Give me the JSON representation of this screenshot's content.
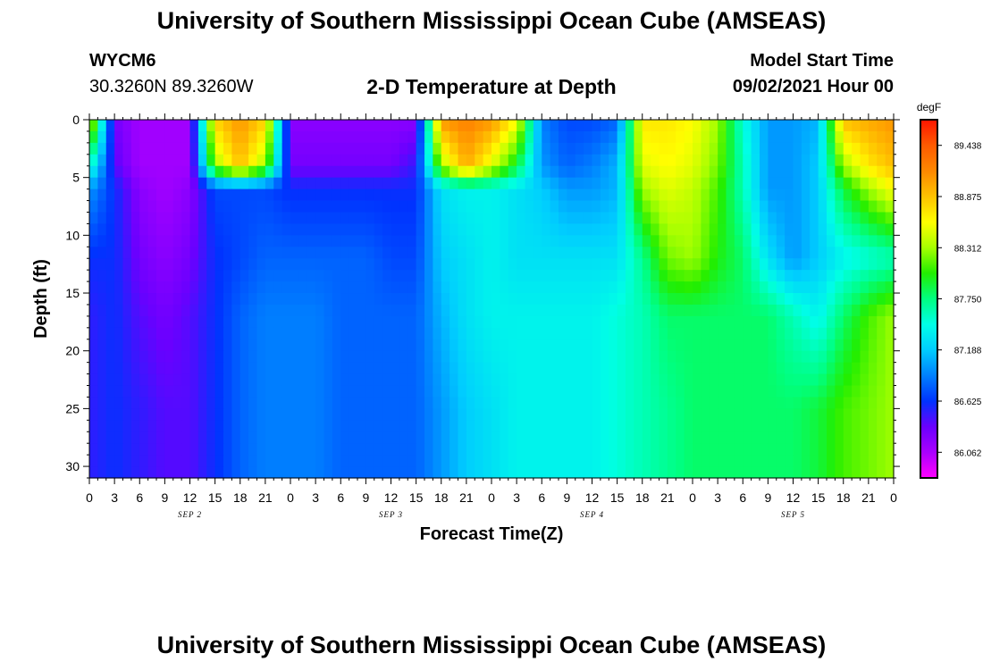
{
  "header": {
    "title": "University of Southern Mississippi Ocean Cube (AMSEAS)",
    "station": "WYCM6",
    "coordinates": "30.3260N  89.3260W",
    "plot_title": "2-D Temperature at Depth",
    "model_start_label": "Model Start Time",
    "model_start_value": "09/02/2021 Hour 00"
  },
  "footer": {
    "title": "University of Southern Mississippi Ocean Cube (AMSEAS)"
  },
  "chart_data": {
    "type": "heatmap",
    "title": "2-D Temperature at Depth",
    "xlabel": "Forecast Time(Z)",
    "ylabel": "Depth (ft)",
    "colorbar_label": "degF",
    "x_ticks": [
      "0",
      "3",
      "6",
      "9",
      "12",
      "15",
      "18",
      "21",
      "0",
      "3",
      "6",
      "9",
      "12",
      "15",
      "18",
      "21",
      "0",
      "3",
      "6",
      "9",
      "12",
      "15",
      "18",
      "21",
      "0",
      "3",
      "6",
      "9",
      "12",
      "15",
      "18",
      "21",
      "0"
    ],
    "date_labels": [
      "SEP 2",
      "SEP 3",
      "SEP 4",
      "SEP 5"
    ],
    "x_range_hours": [
      0,
      96
    ],
    "y_ticks": [
      0,
      5,
      10,
      15,
      20,
      25,
      30
    ],
    "y_range_ft": [
      0,
      31
    ],
    "colorbar_ticks": [
      "89.438",
      "88.875",
      "88.312",
      "87.750",
      "87.188",
      "86.625",
      "86.062"
    ],
    "colorbar_range": [
      85.78,
      89.72
    ],
    "colors": [
      "#ff00ff",
      "#aa00ff",
      "#6a00ff",
      "#0033ff",
      "#0080ff",
      "#00ccff",
      "#00ffe6",
      "#00ff80",
      "#22ee00",
      "#a6ff00",
      "#ffff00",
      "#ffc200",
      "#ff8800",
      "#ff5a00",
      "#ff1500"
    ],
    "x_hours": [
      0,
      3,
      6,
      9,
      12,
      15,
      18,
      21,
      24,
      27,
      30,
      33,
      36,
      39,
      42,
      45,
      48,
      51,
      54,
      57,
      60,
      63,
      66,
      69,
      72,
      75,
      78,
      81,
      84,
      87,
      90,
      93,
      96
    ],
    "depths_ft": [
      0,
      4,
      6,
      12,
      17,
      25,
      31
    ],
    "temperature_degF": [
      [
        88.6,
        86.3,
        86.1,
        86.1,
        86.1,
        88.8,
        89.1,
        88.8,
        86.2,
        86.2,
        86.2,
        86.2,
        86.2,
        86.2,
        89.1,
        89.2,
        89.1,
        88.6,
        86.9,
        86.7,
        86.7,
        86.8,
        88.7,
        88.7,
        88.6,
        88.3,
        87.5,
        87.0,
        87.0,
        87.1,
        88.9,
        89.0,
        89.1
      ],
      [
        87.6,
        86.4,
        86.1,
        86.1,
        86.1,
        88.3,
        88.9,
        88.3,
        86.3,
        86.3,
        86.3,
        86.3,
        86.3,
        86.5,
        88.3,
        89.0,
        88.5,
        87.9,
        87.0,
        86.8,
        86.9,
        87.1,
        88.5,
        88.6,
        88.5,
        88.2,
        87.6,
        87.0,
        87.0,
        87.2,
        88.3,
        88.7,
        88.9
      ],
      [
        87.0,
        86.6,
        86.2,
        86.1,
        86.2,
        86.7,
        86.7,
        86.7,
        86.6,
        86.6,
        86.6,
        86.6,
        86.6,
        86.6,
        87.3,
        87.4,
        87.4,
        87.3,
        87.2,
        87.0,
        87.0,
        87.1,
        88.3,
        88.5,
        88.4,
        88.1,
        87.6,
        87.0,
        87.0,
        87.2,
        87.9,
        88.3,
        88.6
      ],
      [
        86.6,
        86.6,
        86.3,
        86.2,
        86.3,
        86.6,
        86.7,
        86.8,
        86.8,
        86.8,
        86.8,
        86.8,
        86.7,
        86.7,
        87.2,
        87.3,
        87.4,
        87.3,
        87.3,
        87.3,
        87.3,
        87.3,
        87.7,
        88.2,
        88.3,
        88.0,
        87.8,
        87.3,
        87.0,
        87.2,
        87.4,
        87.5,
        87.6
      ],
      [
        86.5,
        86.6,
        86.4,
        86.3,
        86.4,
        86.6,
        86.8,
        86.9,
        86.9,
        86.9,
        86.8,
        86.8,
        86.8,
        86.8,
        87.1,
        87.3,
        87.4,
        87.4,
        87.4,
        87.4,
        87.4,
        87.5,
        87.6,
        87.8,
        87.8,
        87.8,
        87.8,
        87.8,
        87.6,
        87.4,
        87.8,
        88.1,
        88.3
      ],
      [
        86.5,
        86.6,
        86.5,
        86.4,
        86.4,
        86.6,
        86.8,
        86.9,
        86.9,
        86.9,
        86.8,
        86.8,
        86.8,
        86.8,
        87.0,
        87.2,
        87.3,
        87.4,
        87.4,
        87.4,
        87.4,
        87.5,
        87.6,
        87.7,
        87.8,
        87.8,
        87.8,
        87.8,
        87.8,
        87.9,
        88.1,
        88.2,
        88.3
      ],
      [
        86.5,
        86.6,
        86.5,
        86.4,
        86.4,
        86.6,
        86.8,
        86.9,
        86.9,
        86.9,
        86.8,
        86.8,
        86.8,
        86.8,
        87.0,
        87.2,
        87.3,
        87.4,
        87.4,
        87.4,
        87.4,
        87.5,
        87.6,
        87.7,
        87.8,
        87.8,
        87.8,
        87.8,
        87.8,
        87.9,
        88.1,
        88.2,
        88.3
      ]
    ]
  }
}
